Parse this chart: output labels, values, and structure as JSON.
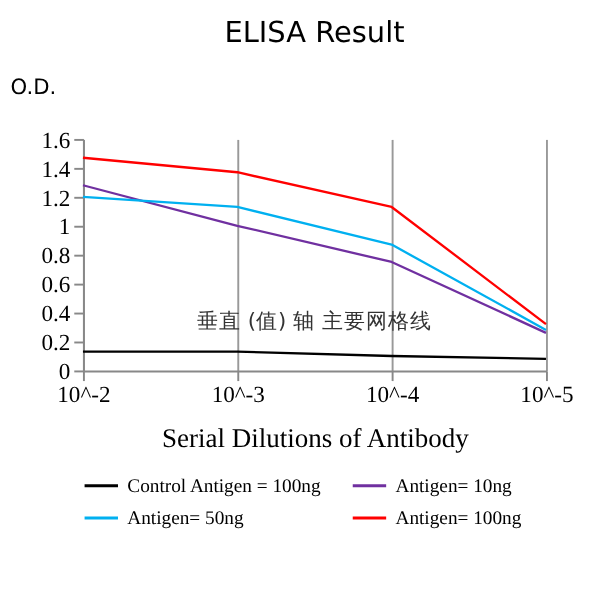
{
  "chart_data": {
    "type": "line",
    "title": "ELISA Result",
    "xlabel": "Serial Dilutions of Antibody",
    "ylabel": "O.D.",
    "categories": [
      "10^-2",
      "10^-3",
      "10^-4",
      "10^-5"
    ],
    "series": [
      {
        "name": "Control Antigen = 100ng",
        "color": "#000000",
        "values": [
          0.13,
          0.13,
          0.1,
          0.08
        ]
      },
      {
        "name": "Antigen= 10ng",
        "color": "#7030a0",
        "values": [
          1.28,
          1.0,
          0.75,
          0.26
        ]
      },
      {
        "name": "Antigen= 50ng",
        "color": "#00b0f0",
        "values": [
          1.2,
          1.13,
          0.87,
          0.28
        ]
      },
      {
        "name": "Antigen= 100ng",
        "color": "#ff0000",
        "values": [
          1.47,
          1.37,
          1.13,
          0.32
        ]
      }
    ],
    "ylim": [
      0,
      1.6
    ],
    "yticks": [
      0,
      0.2,
      0.4,
      0.6,
      0.8,
      1,
      1.2,
      1.4,
      1.6
    ],
    "grid": "x",
    "legend": "bottom",
    "marker": "none",
    "line_style": "solid",
    "annotations": [
      "垂直 (值) 轴 主要网格线"
    ]
  }
}
